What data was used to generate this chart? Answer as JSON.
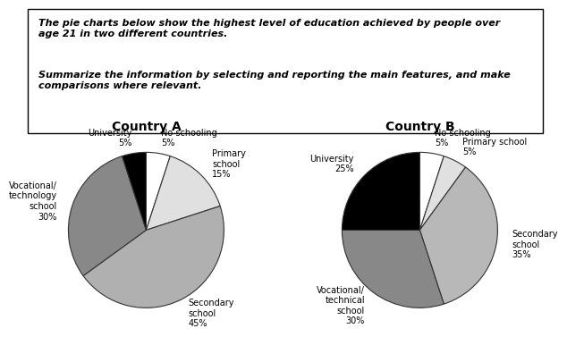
{
  "text_line1": "The pie charts below show the highest level of education achieved by people over",
  "text_line2": "age 21 in two different countries.",
  "text_line3": "Summarize the information by selecting and reporting the main features, and make",
  "text_line4": "comparisons where relevant.",
  "country_a": {
    "title": "Country A",
    "labels": [
      "No schooling\n5%",
      "Primary\nschool\n15%",
      "Secondary\nschool\n45%",
      "Vocational/\ntechnology\nschool\n30%",
      "University\n5%"
    ],
    "values": [
      5,
      15,
      45,
      30,
      5
    ],
    "colors": [
      "#ffffff",
      "#e0e0e0",
      "#b0b0b0",
      "#888888",
      "#000000"
    ],
    "startangle": 90,
    "counterclock": false
  },
  "country_b": {
    "title": "Country B",
    "labels": [
      "No schooling\n5%",
      "Primary school\n5%",
      "Secondary\nschool\n35%",
      "Vocational/\ntechnical\nschool\n30%",
      "University\n25%"
    ],
    "values": [
      5,
      5,
      35,
      30,
      25
    ],
    "colors": [
      "#ffffff",
      "#e0e0e0",
      "#b8b8b8",
      "#888888",
      "#000000"
    ],
    "startangle": 90,
    "counterclock": false
  },
  "text_fontsize": 8.0,
  "pie_label_fontsize": 7.0,
  "title_fontsize": 10
}
